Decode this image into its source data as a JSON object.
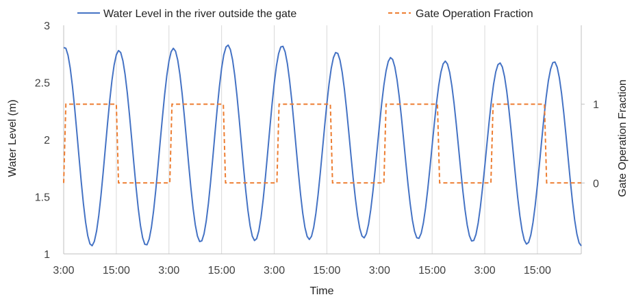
{
  "chart_data": {
    "type": "line",
    "xlabel": "Time",
    "ylabel": "Water Level (m)",
    "y2label": "Gate Operation Fraction",
    "x_tick_labels": [
      "3:00",
      "15:00",
      "3:00",
      "15:00",
      "3:00",
      "15:00",
      "3:00",
      "15:00",
      "3:00",
      "15:00"
    ],
    "x_tick_hours": [
      0,
      12,
      24,
      36,
      48,
      60,
      72,
      84,
      96,
      108
    ],
    "xlim": [
      0,
      118
    ],
    "ylim": [
      1,
      3
    ],
    "y_ticks": [
      1,
      1.5,
      2,
      2.5,
      3
    ],
    "y2lim": [
      -0.9,
      2
    ],
    "y2_ticks": [
      0,
      1
    ],
    "grid": "x-major vertical",
    "legend_position": "top",
    "series": [
      {
        "name": "Water Level in the river outside the gate",
        "axis": "left",
        "color": "#4472C4",
        "style": "solid",
        "amplitude": [
          0.87,
          0.85,
          0.86,
          0.85,
          0.8,
          0.78,
          0.79,
          0.81
        ],
        "mean": [
          1.94,
          1.92,
          1.97,
          1.97,
          1.94,
          1.91,
          1.88,
          1.88
        ],
        "period_hours": 12.4,
        "x_start_hours": 0,
        "x_end_hours": 118
      },
      {
        "name": "Gate Operation Fraction",
        "axis": "right",
        "color": "#ED7D31",
        "style": "dashed",
        "x": [
          0,
          0.5,
          12,
          12.5,
          24.2,
          24.7,
          36.4,
          36.9,
          48.6,
          49.1,
          60.8,
          61.3,
          73.0,
          73.5,
          85.2,
          85.7,
          97.4,
          97.9,
          109.6,
          110.1,
          118
        ],
        "values": [
          0,
          1,
          1,
          0,
          0,
          1,
          1,
          0,
          0,
          1,
          1,
          0,
          0,
          1,
          1,
          0,
          0,
          1,
          1,
          0,
          0
        ]
      }
    ]
  }
}
